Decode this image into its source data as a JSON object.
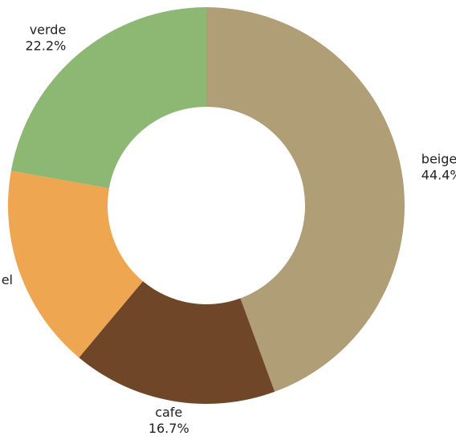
{
  "chart_data": {
    "type": "pie",
    "donut": true,
    "title": "",
    "legend": false,
    "slices": [
      {
        "name": "beige",
        "percent": 44.4,
        "label": "44.4%",
        "color": "#b09f76"
      },
      {
        "name": "cafe",
        "percent": 16.7,
        "label": "16.7%",
        "color": "#704628"
      },
      {
        "name": "",
        "percent": 16.7,
        "label": "",
        "color": "#eea651",
        "visible_label": "el"
      },
      {
        "name": "verde",
        "percent": 22.2,
        "label": "22.2%",
        "color": "#8db874"
      }
    ],
    "start_direction": "top",
    "direction": "clockwise"
  }
}
